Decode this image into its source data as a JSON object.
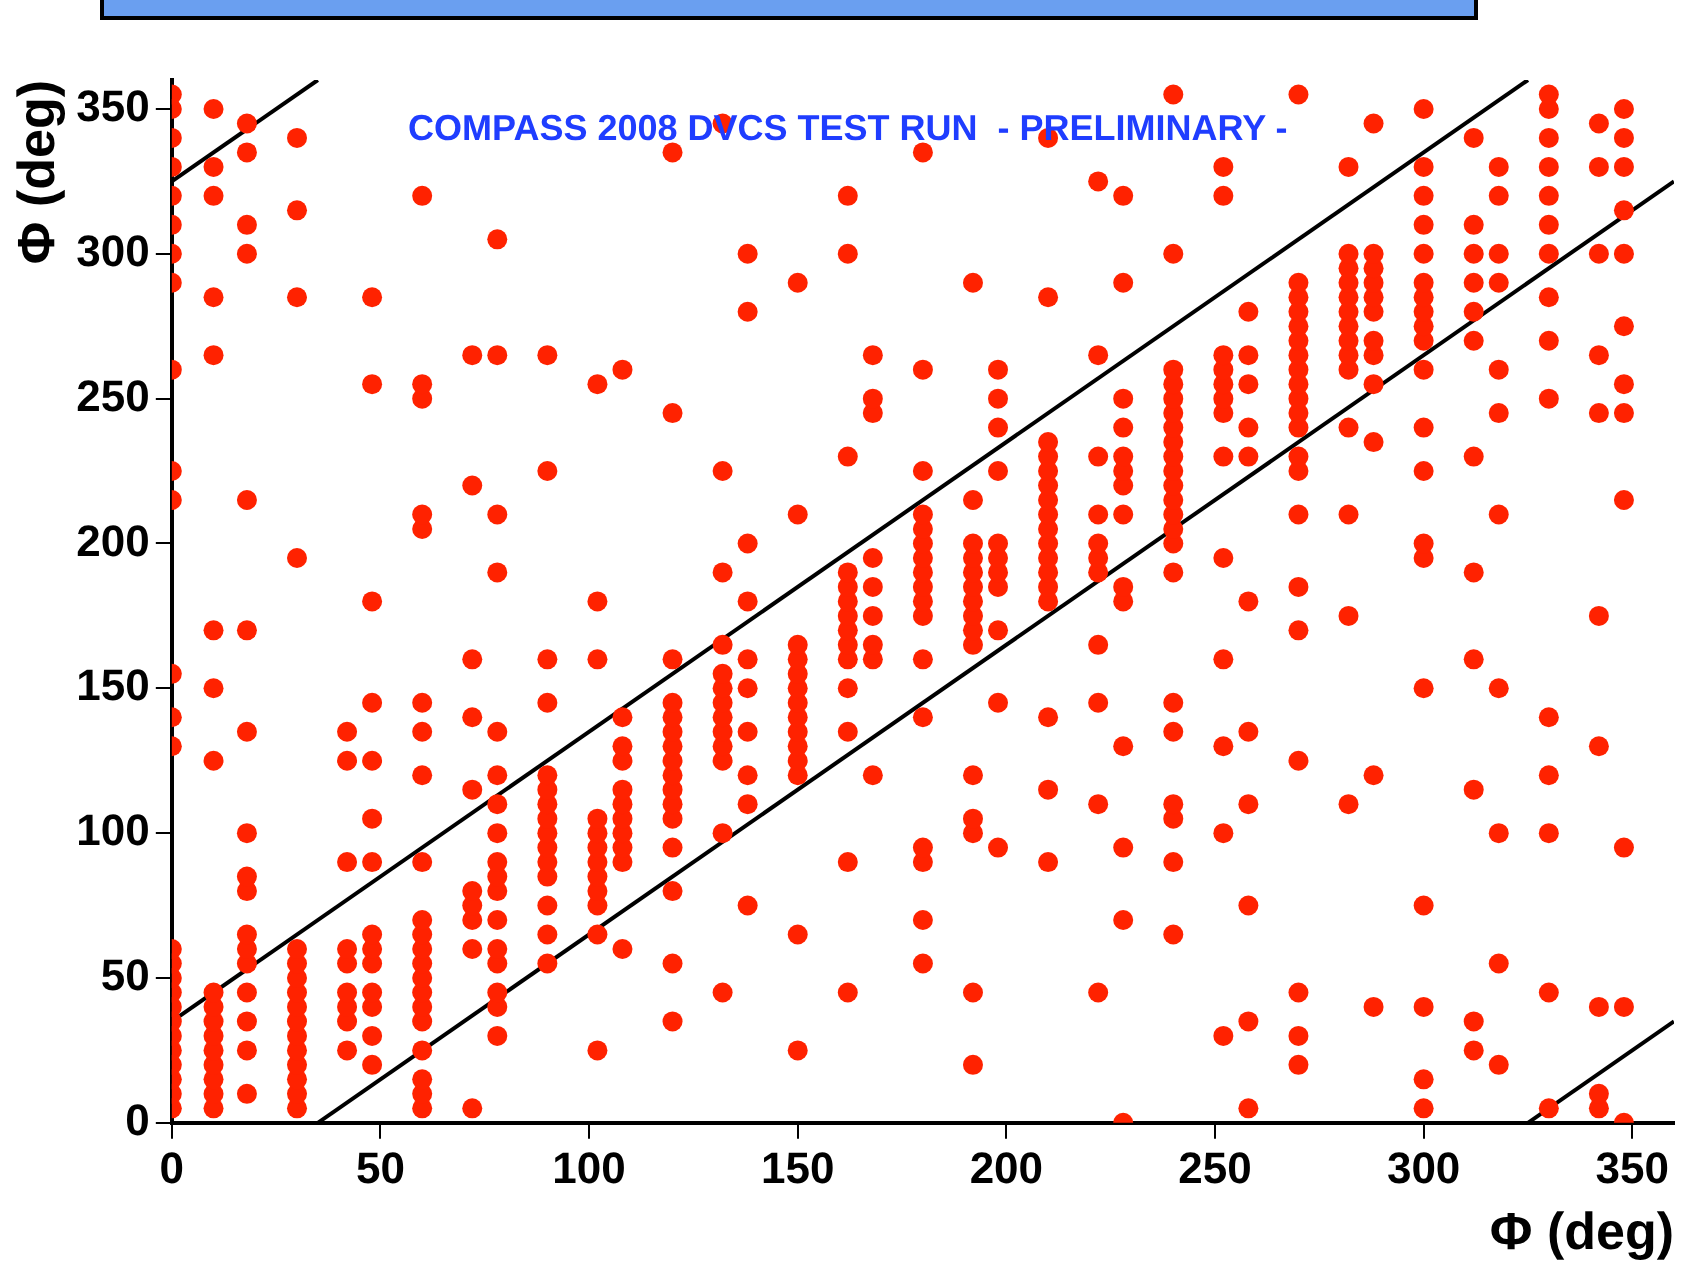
{
  "chart_data": {
    "type": "scatter",
    "xlabel": "Φ (deg)",
    "ylabel": "Φ (deg)",
    "annotations": [
      "COMPASS 2008 DVCS TEST RUN  - PRELIMINARY -"
    ],
    "xlim": [
      0,
      360
    ],
    "ylim": [
      0,
      360
    ],
    "xticks": [
      0,
      50,
      100,
      150,
      200,
      250,
      300,
      350
    ],
    "yticks": [
      0,
      50,
      100,
      150,
      200,
      250,
      300,
      350
    ],
    "grid": false,
    "legend": false,
    "series": [
      {
        "type": "scatter",
        "color": "#ff2200",
        "marker": "circle",
        "x": [
          0,
          0,
          0,
          0,
          0,
          0,
          0,
          0,
          0,
          0,
          0,
          0,
          0,
          0,
          0,
          0,
          0,
          0,
          0,
          0,
          0,
          0,
          0,
          0,
          0,
          0,
          10,
          10,
          10,
          10,
          10,
          10,
          10,
          10,
          10,
          10,
          10,
          10,
          10,
          10,
          10,
          10,
          10,
          18,
          18,
          18,
          18,
          18,
          18,
          18,
          18,
          18,
          18,
          18,
          18,
          18,
          18,
          18,
          18,
          18,
          30,
          30,
          30,
          30,
          30,
          30,
          30,
          30,
          30,
          30,
          30,
          30,
          30,
          30,
          30,
          30,
          42,
          42,
          42,
          42,
          42,
          42,
          42,
          42,
          42,
          48,
          48,
          48,
          48,
          48,
          48,
          48,
          48,
          48,
          48,
          48,
          48,
          48,
          48,
          60,
          60,
          60,
          60,
          60,
          60,
          60,
          60,
          60,
          60,
          60,
          60,
          60,
          60,
          60,
          60,
          60,
          60,
          60,
          60,
          60,
          72,
          72,
          72,
          72,
          72,
          72,
          72,
          72,
          72,
          72,
          78,
          78,
          78,
          78,
          78,
          78,
          78,
          78,
          78,
          78,
          78,
          78,
          78,
          78,
          78,
          78,
          78,
          90,
          90,
          90,
          90,
          90,
          90,
          90,
          90,
          90,
          90,
          90,
          90,
          90,
          90,
          90,
          102,
          102,
          102,
          102,
          102,
          102,
          102,
          102,
          102,
          102,
          102,
          102,
          108,
          108,
          108,
          108,
          108,
          108,
          108,
          108,
          108,
          108,
          108,
          120,
          120,
          120,
          120,
          120,
          120,
          120,
          120,
          120,
          120,
          120,
          120,
          120,
          120,
          120,
          120,
          132,
          132,
          132,
          132,
          132,
          132,
          132,
          132,
          132,
          132,
          132,
          132,
          132,
          138,
          138,
          138,
          138,
          138,
          138,
          138,
          138,
          138,
          138,
          150,
          150,
          150,
          150,
          150,
          150,
          150,
          150,
          150,
          150,
          150,
          150,
          150,
          150,
          162,
          162,
          162,
          162,
          162,
          162,
          162,
          162,
          162,
          162,
          162,
          162,
          162,
          162,
          168,
          168,
          168,
          168,
          168,
          168,
          168,
          168,
          168,
          180,
          180,
          180,
          180,
          180,
          180,
          180,
          180,
          180,
          180,
          180,
          180,
          180,
          180,
          180,
          180,
          180,
          192,
          192,
          192,
          192,
          192,
          192,
          192,
          192,
          192,
          192,
          192,
          192,
          192,
          192,
          192,
          198,
          198,
          198,
          198,
          198,
          198,
          198,
          198,
          198,
          198,
          198,
          210,
          210,
          210,
          210,
          210,
          210,
          210,
          210,
          210,
          210,
          210,
          210,
          210,
          210,
          210,
          210,
          210,
          222,
          222,
          222,
          222,
          222,
          222,
          222,
          222,
          222,
          222,
          222,
          228,
          228,
          228,
          228,
          228,
          228,
          228,
          228,
          228,
          228,
          228,
          228,
          228,
          228,
          240,
          240,
          240,
          240,
          240,
          240,
          240,
          240,
          240,
          240,
          240,
          240,
          240,
          240,
          240,
          240,
          240,
          240,
          240,
          240,
          240,
          240,
          252,
          252,
          252,
          252,
          252,
          252,
          252,
          252,
          252,
          252,
          252,
          252,
          252,
          258,
          258,
          258,
          258,
          258,
          258,
          258,
          258,
          258,
          258,
          258,
          270,
          270,
          270,
          270,
          270,
          270,
          270,
          270,
          270,
          270,
          270,
          270,
          270,
          270,
          270,
          270,
          270,
          270,
          270,
          270,
          270,
          282,
          282,
          282,
          282,
          282,
          282,
          282,
          282,
          282,
          282,
          282,
          282,
          282,
          282,
          288,
          288,
          288,
          288,
          288,
          288,
          288,
          288,
          288,
          288,
          288,
          288,
          300,
          300,
          300,
          300,
          300,
          300,
          300,
          300,
          300,
          300,
          300,
          300,
          300,
          300,
          300,
          300,
          300,
          300,
          300,
          300,
          312,
          312,
          312,
          312,
          312,
          312,
          312,
          312,
          312,
          312,
          312,
          312,
          318,
          318,
          318,
          318,
          318,
          318,
          318,
          318,
          318,
          318,
          318,
          330,
          330,
          330,
          330,
          330,
          330,
          330,
          330,
          330,
          330,
          330,
          330,
          330,
          330,
          330,
          342,
          342,
          342,
          342,
          342,
          342,
          342,
          342,
          342,
          342,
          348,
          348,
          348,
          348,
          348,
          348,
          348,
          348,
          348,
          348,
          348,
          348
        ],
        "values": [
          5,
          10,
          15,
          20,
          25,
          30,
          35,
          40,
          45,
          50,
          55,
          60,
          130,
          140,
          155,
          215,
          225,
          260,
          290,
          300,
          310,
          320,
          330,
          340,
          350,
          355,
          5,
          10,
          15,
          20,
          25,
          30,
          35,
          40,
          45,
          125,
          150,
          170,
          265,
          285,
          320,
          330,
          350,
          10,
          25,
          35,
          45,
          55,
          60,
          65,
          80,
          85,
          100,
          135,
          170,
          215,
          300,
          310,
          335,
          345,
          5,
          10,
          15,
          20,
          25,
          30,
          35,
          40,
          45,
          50,
          55,
          60,
          195,
          285,
          315,
          340,
          25,
          35,
          40,
          45,
          55,
          60,
          90,
          125,
          135,
          20,
          30,
          40,
          45,
          55,
          60,
          65,
          90,
          105,
          125,
          145,
          180,
          255,
          285,
          5,
          10,
          15,
          25,
          35,
          40,
          45,
          50,
          55,
          60,
          65,
          70,
          90,
          120,
          135,
          145,
          205,
          210,
          250,
          255,
          320,
          5,
          60,
          70,
          75,
          80,
          115,
          140,
          160,
          220,
          265,
          30,
          40,
          45,
          55,
          60,
          70,
          80,
          85,
          90,
          100,
          110,
          120,
          135,
          190,
          210,
          265,
          305,
          55,
          65,
          75,
          85,
          90,
          95,
          100,
          105,
          110,
          115,
          120,
          145,
          160,
          225,
          265,
          25,
          65,
          75,
          80,
          85,
          90,
          95,
          100,
          105,
          160,
          180,
          255,
          60,
          90,
          95,
          100,
          105,
          110,
          115,
          125,
          130,
          140,
          260,
          35,
          55,
          80,
          95,
          105,
          110,
          115,
          120,
          125,
          130,
          135,
          140,
          145,
          160,
          245,
          335,
          45,
          100,
          125,
          130,
          135,
          140,
          145,
          150,
          155,
          165,
          190,
          225,
          345,
          75,
          110,
          120,
          135,
          150,
          160,
          180,
          200,
          280,
          300,
          25,
          65,
          120,
          125,
          130,
          135,
          140,
          145,
          150,
          155,
          160,
          165,
          210,
          290,
          45,
          90,
          135,
          150,
          160,
          165,
          170,
          175,
          180,
          185,
          190,
          230,
          300,
          320,
          120,
          160,
          165,
          175,
          185,
          195,
          245,
          250,
          265,
          55,
          70,
          90,
          95,
          140,
          160,
          175,
          180,
          185,
          190,
          195,
          200,
          205,
          210,
          225,
          260,
          335,
          20,
          45,
          100,
          105,
          120,
          165,
          170,
          175,
          180,
          185,
          190,
          195,
          200,
          215,
          290,
          95,
          145,
          170,
          185,
          190,
          195,
          200,
          225,
          240,
          250,
          260,
          90,
          115,
          140,
          180,
          185,
          190,
          195,
          200,
          205,
          210,
          215,
          220,
          225,
          230,
          235,
          285,
          340,
          45,
          110,
          145,
          165,
          190,
          195,
          200,
          210,
          230,
          265,
          325,
          0,
          70,
          95,
          130,
          180,
          185,
          210,
          220,
          225,
          230,
          240,
          250,
          290,
          320,
          65,
          90,
          105,
          110,
          135,
          145,
          190,
          200,
          205,
          210,
          215,
          220,
          225,
          230,
          235,
          240,
          245,
          250,
          255,
          260,
          300,
          355,
          30,
          100,
          130,
          160,
          195,
          230,
          245,
          250,
          255,
          260,
          265,
          320,
          330,
          5,
          35,
          75,
          110,
          135,
          180,
          230,
          240,
          255,
          265,
          280,
          20,
          30,
          45,
          125,
          170,
          185,
          210,
          225,
          230,
          240,
          245,
          250,
          255,
          260,
          265,
          270,
          275,
          280,
          285,
          290,
          355,
          110,
          175,
          210,
          240,
          260,
          265,
          270,
          275,
          280,
          285,
          290,
          295,
          300,
          330,
          40,
          120,
          235,
          255,
          265,
          270,
          280,
          285,
          290,
          295,
          300,
          345,
          5,
          15,
          40,
          75,
          150,
          195,
          200,
          225,
          240,
          260,
          270,
          275,
          280,
          285,
          290,
          300,
          310,
          320,
          330,
          350,
          25,
          35,
          115,
          160,
          190,
          230,
          270,
          280,
          290,
          300,
          310,
          340,
          20,
          55,
          100,
          150,
          210,
          245,
          260,
          290,
          300,
          320,
          330,
          5,
          45,
          100,
          120,
          140,
          250,
          270,
          285,
          300,
          310,
          320,
          330,
          340,
          350,
          355,
          5,
          10,
          40,
          130,
          175,
          245,
          265,
          300,
          330,
          345,
          0,
          40,
          95,
          215,
          245,
          255,
          275,
          300,
          315,
          330,
          340,
          350
        ]
      },
      {
        "type": "line",
        "color": "#000000",
        "x": [
          0,
          325
        ],
        "values": [
          35,
          360
        ]
      },
      {
        "type": "line",
        "color": "#000000",
        "x": [
          35,
          360
        ],
        "values": [
          0,
          325
        ]
      },
      {
        "type": "line",
        "color": "#000000",
        "x": [
          0,
          35
        ],
        "values": [
          325,
          360
        ]
      },
      {
        "type": "line",
        "color": "#000000",
        "x": [
          325,
          360
        ],
        "values": [
          0,
          35
        ]
      }
    ]
  }
}
